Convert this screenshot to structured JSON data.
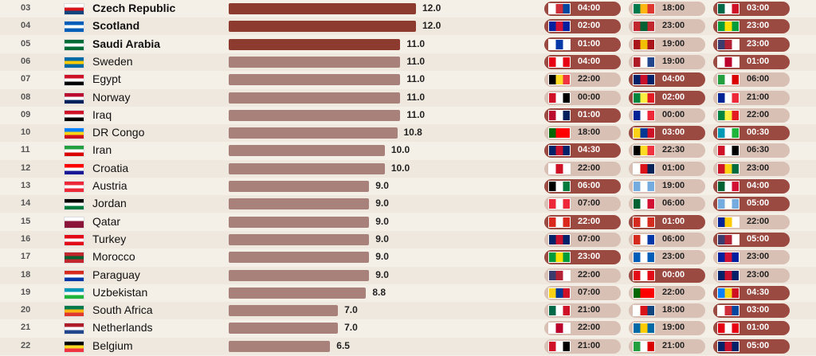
{
  "chart_data": {
    "type": "bar",
    "orientation": "horizontal",
    "rows": [
      {
        "rank": "03",
        "country": "Czech Republic",
        "value": 12.0,
        "label": "12.0",
        "bold": true,
        "flag": [
          "#ffffff",
          "#d7141a",
          "#11457e"
        ],
        "matches": [
          {
            "flag": [
              "#ffffff",
              "#cd2e3a",
              "#0047a0"
            ],
            "time": "04:00",
            "tone": "dark"
          },
          {
            "flag": [
              "#007a4d",
              "#ffb612",
              "#de3831"
            ],
            "time": "18:00",
            "tone": "light"
          },
          {
            "flag": [
              "#006847",
              "#ffffff",
              "#ce1126"
            ],
            "time": "03:00",
            "tone": "dark"
          }
        ]
      },
      {
        "rank": "04",
        "country": "Scotland",
        "value": 12.0,
        "label": "12.0",
        "bold": true,
        "flag": [
          "#005eb8",
          "#ffffff",
          "#005eb8"
        ],
        "matches": [
          {
            "flag": [
              "#00209f",
              "#d21034",
              "#00209f"
            ],
            "time": "02:00",
            "tone": "dark"
          },
          {
            "flag": [
              "#c1272d",
              "#006233",
              "#c1272d"
            ],
            "time": "23:00",
            "tone": "light"
          },
          {
            "flag": [
              "#009c3b",
              "#ffdf00",
              "#009c3b"
            ],
            "time": "23:00",
            "tone": "dark"
          }
        ]
      },
      {
        "rank": "05",
        "country": "Saudi Arabia",
        "value": 11.0,
        "label": "11.0",
        "bold": true,
        "flag": [
          "#006c35",
          "#ffffff",
          "#006c35"
        ],
        "matches": [
          {
            "flag": [
              "#ffffff",
              "#0038a8",
              "#ffffff"
            ],
            "time": "01:00",
            "tone": "dark"
          },
          {
            "flag": [
              "#aa151b",
              "#f1bf00",
              "#aa151b"
            ],
            "time": "19:00",
            "tone": "light"
          },
          {
            "flag": [
              "#3c3b6e",
              "#b22234",
              "#ffffff"
            ],
            "time": "23:00",
            "tone": "dark"
          }
        ]
      },
      {
        "rank": "06",
        "country": "Sweden",
        "value": 11.0,
        "label": "11.0",
        "bold": false,
        "flag": [
          "#006aa7",
          "#fecc00",
          "#006aa7"
        ],
        "matches": [
          {
            "flag": [
              "#e70013",
              "#ffffff",
              "#e70013"
            ],
            "time": "04:00",
            "tone": "dark"
          },
          {
            "flag": [
              "#ae1c28",
              "#ffffff",
              "#21468b"
            ],
            "time": "19:00",
            "tone": "light"
          },
          {
            "flag": [
              "#ffffff",
              "#bc002d",
              "#ffffff"
            ],
            "time": "01:00",
            "tone": "dark"
          }
        ]
      },
      {
        "rank": "07",
        "country": "Egypt",
        "value": 11.0,
        "label": "11.0",
        "bold": false,
        "flag": [
          "#ce1126",
          "#ffffff",
          "#000000"
        ],
        "matches": [
          {
            "flag": [
              "#000000",
              "#fdda24",
              "#ef3340"
            ],
            "time": "22:00",
            "tone": "light"
          },
          {
            "flag": [
              "#012169",
              "#c8102e",
              "#012169"
            ],
            "time": "04:00",
            "tone": "dark"
          },
          {
            "flag": [
              "#239f40",
              "#ffffff",
              "#da0000"
            ],
            "time": "06:00",
            "tone": "light"
          }
        ]
      },
      {
        "rank": "08",
        "country": "Norway",
        "value": 11.0,
        "label": "11.0",
        "bold": false,
        "flag": [
          "#ba0c2f",
          "#ffffff",
          "#00205b"
        ],
        "matches": [
          {
            "flag": [
              "#ce1126",
              "#ffffff",
              "#000000"
            ],
            "time": "00:00",
            "tone": "light"
          },
          {
            "flag": [
              "#00853f",
              "#fdef42",
              "#e31b23"
            ],
            "time": "02:00",
            "tone": "dark"
          },
          {
            "flag": [
              "#002395",
              "#ffffff",
              "#ed2939"
            ],
            "time": "21:00",
            "tone": "light"
          }
        ]
      },
      {
        "rank": "09",
        "country": "Iraq",
        "value": 11.0,
        "label": "11.0",
        "bold": false,
        "flag": [
          "#ce1126",
          "#ffffff",
          "#000000"
        ],
        "matches": [
          {
            "flag": [
              "#ba0c2f",
              "#ffffff",
              "#00205b"
            ],
            "time": "01:00",
            "tone": "dark"
          },
          {
            "flag": [
              "#002395",
              "#ffffff",
              "#ed2939"
            ],
            "time": "00:00",
            "tone": "light"
          },
          {
            "flag": [
              "#00853f",
              "#fdef42",
              "#e31b23"
            ],
            "time": "22:00",
            "tone": "light"
          }
        ]
      },
      {
        "rank": "10",
        "country": "DR Congo",
        "value": 10.8,
        "label": "10.8",
        "bold": false,
        "flag": [
          "#007fff",
          "#f7d618",
          "#ce1021"
        ],
        "matches": [
          {
            "flag": [
              "#006600",
              "#ff0000",
              "#ff0000"
            ],
            "time": "18:00",
            "tone": "light"
          },
          {
            "flag": [
              "#fcd116",
              "#003893",
              "#ce1126"
            ],
            "time": "03:00",
            "tone": "dark"
          },
          {
            "flag": [
              "#0099b5",
              "#ffffff",
              "#1eb53a"
            ],
            "time": "00:30",
            "tone": "dark"
          }
        ]
      },
      {
        "rank": "11",
        "country": "Iran",
        "value": 10.0,
        "label": "10.0",
        "bold": false,
        "flag": [
          "#239f40",
          "#ffffff",
          "#da0000"
        ],
        "matches": [
          {
            "flag": [
              "#012169",
              "#c8102e",
              "#012169"
            ],
            "time": "04:30",
            "tone": "dark"
          },
          {
            "flag": [
              "#000000",
              "#fdda24",
              "#ef3340"
            ],
            "time": "22:30",
            "tone": "light"
          },
          {
            "flag": [
              "#ce1126",
              "#ffffff",
              "#000000"
            ],
            "time": "06:30",
            "tone": "light"
          }
        ]
      },
      {
        "rank": "12",
        "country": "Croatia",
        "value": 10.0,
        "label": "10.0",
        "bold": false,
        "flag": [
          "#ff0000",
          "#ffffff",
          "#171796"
        ],
        "matches": [
          {
            "flag": [
              "#ffffff",
              "#ce1124",
              "#ffffff"
            ],
            "time": "22:00",
            "tone": "light"
          },
          {
            "flag": [
              "#ffffff",
              "#da121a",
              "#072357"
            ],
            "time": "01:00",
            "tone": "light"
          },
          {
            "flag": [
              "#ce1126",
              "#fcd116",
              "#006b3f"
            ],
            "time": "23:00",
            "tone": "light"
          }
        ]
      },
      {
        "rank": "13",
        "country": "Austria",
        "value": 9.0,
        "label": "9.0",
        "bold": false,
        "flag": [
          "#ed2939",
          "#ffffff",
          "#ed2939"
        ],
        "matches": [
          {
            "flag": [
              "#000000",
              "#ffffff",
              "#007a3d"
            ],
            "time": "06:00",
            "tone": "dark"
          },
          {
            "flag": [
              "#74acdf",
              "#ffffff",
              "#74acdf"
            ],
            "time": "19:00",
            "tone": "light"
          },
          {
            "flag": [
              "#006233",
              "#ffffff",
              "#d21034"
            ],
            "time": "04:00",
            "tone": "dark"
          }
        ]
      },
      {
        "rank": "14",
        "country": "Jordan",
        "value": 9.0,
        "label": "9.0",
        "bold": false,
        "flag": [
          "#000000",
          "#ffffff",
          "#007a3d"
        ],
        "matches": [
          {
            "flag": [
              "#ed2939",
              "#ffffff",
              "#ed2939"
            ],
            "time": "07:00",
            "tone": "light"
          },
          {
            "flag": [
              "#006233",
              "#ffffff",
              "#d21034"
            ],
            "time": "06:00",
            "tone": "light"
          },
          {
            "flag": [
              "#74acdf",
              "#ffffff",
              "#74acdf"
            ],
            "time": "05:00",
            "tone": "dark"
          }
        ]
      },
      {
        "rank": "15",
        "country": "Qatar",
        "value": 9.0,
        "label": "9.0",
        "bold": false,
        "flag": [
          "#ffffff",
          "#8a1538",
          "#8a1538"
        ],
        "matches": [
          {
            "flag": [
              "#da291c",
              "#ffffff",
              "#da291c"
            ],
            "time": "22:00",
            "tone": "dark"
          },
          {
            "flag": [
              "#d52b1e",
              "#ffffff",
              "#d52b1e"
            ],
            "time": "01:00",
            "tone": "dark"
          },
          {
            "flag": [
              "#002395",
              "#fecb00",
              "#ffffff"
            ],
            "time": "22:00",
            "tone": "light"
          }
        ]
      },
      {
        "rank": "16",
        "country": "Turkey",
        "value": 9.0,
        "label": "9.0",
        "bold": false,
        "flag": [
          "#e30a17",
          "#ffffff",
          "#e30a17"
        ],
        "matches": [
          {
            "flag": [
              "#012169",
              "#c8102e",
              "#012169"
            ],
            "time": "07:00",
            "tone": "light"
          },
          {
            "flag": [
              "#d52b1e",
              "#ffffff",
              "#0038a8"
            ],
            "time": "06:00",
            "tone": "light"
          },
          {
            "flag": [
              "#3c3b6e",
              "#b22234",
              "#ffffff"
            ],
            "time": "05:00",
            "tone": "dark"
          }
        ]
      },
      {
        "rank": "17",
        "country": "Morocco",
        "value": 9.0,
        "label": "9.0",
        "bold": false,
        "flag": [
          "#c1272d",
          "#006233",
          "#c1272d"
        ],
        "matches": [
          {
            "flag": [
              "#009c3b",
              "#ffdf00",
              "#009c3b"
            ],
            "time": "23:00",
            "tone": "dark"
          },
          {
            "flag": [
              "#005eb8",
              "#ffffff",
              "#005eb8"
            ],
            "time": "23:00",
            "tone": "light"
          },
          {
            "flag": [
              "#00209f",
              "#d21034",
              "#00209f"
            ],
            "time": "23:00",
            "tone": "light"
          }
        ]
      },
      {
        "rank": "18",
        "country": "Paraguay",
        "value": 9.0,
        "label": "9.0",
        "bold": false,
        "flag": [
          "#d52b1e",
          "#ffffff",
          "#0038a8"
        ],
        "matches": [
          {
            "flag": [
              "#3c3b6e",
              "#b22234",
              "#ffffff"
            ],
            "time": "22:00",
            "tone": "light"
          },
          {
            "flag": [
              "#e30a17",
              "#ffffff",
              "#e30a17"
            ],
            "time": "00:00",
            "tone": "dark"
          },
          {
            "flag": [
              "#012169",
              "#c8102e",
              "#012169"
            ],
            "time": "23:00",
            "tone": "light"
          }
        ]
      },
      {
        "rank": "19",
        "country": "Uzbekistan",
        "value": 8.8,
        "label": "8.8",
        "bold": false,
        "flag": [
          "#0099b5",
          "#ffffff",
          "#1eb53a"
        ],
        "matches": [
          {
            "flag": [
              "#fcd116",
              "#003893",
              "#ce1126"
            ],
            "time": "07:00",
            "tone": "light"
          },
          {
            "flag": [
              "#006600",
              "#ff0000",
              "#ff0000"
            ],
            "time": "22:00",
            "tone": "light"
          },
          {
            "flag": [
              "#007fff",
              "#f7d618",
              "#ce1021"
            ],
            "time": "04:30",
            "tone": "dark"
          }
        ]
      },
      {
        "rank": "20",
        "country": "South Africa",
        "value": 7.0,
        "label": "7.0",
        "bold": false,
        "flag": [
          "#007a4d",
          "#ffb612",
          "#de3831"
        ],
        "matches": [
          {
            "flag": [
              "#006847",
              "#ffffff",
              "#ce1126"
            ],
            "time": "21:00",
            "tone": "light"
          },
          {
            "flag": [
              "#ffffff",
              "#d7141a",
              "#11457e"
            ],
            "time": "18:00",
            "tone": "light"
          },
          {
            "flag": [
              "#ffffff",
              "#cd2e3a",
              "#0047a0"
            ],
            "time": "03:00",
            "tone": "dark"
          }
        ]
      },
      {
        "rank": "21",
        "country": "Netherlands",
        "value": 7.0,
        "label": "7.0",
        "bold": false,
        "flag": [
          "#ae1c28",
          "#ffffff",
          "#21468b"
        ],
        "matches": [
          {
            "flag": [
              "#ffffff",
              "#bc002d",
              "#ffffff"
            ],
            "time": "22:00",
            "tone": "light"
          },
          {
            "flag": [
              "#006aa7",
              "#fecc00",
              "#006aa7"
            ],
            "time": "19:00",
            "tone": "light"
          },
          {
            "flag": [
              "#e70013",
              "#ffffff",
              "#e70013"
            ],
            "time": "01:00",
            "tone": "dark"
          }
        ]
      },
      {
        "rank": "22",
        "country": "Belgium",
        "value": 6.5,
        "label": "6.5",
        "bold": false,
        "flag": [
          "#000000",
          "#fdda24",
          "#ef3340"
        ],
        "matches": [
          {
            "flag": [
              "#ce1126",
              "#ffffff",
              "#000000"
            ],
            "time": "21:00",
            "tone": "light"
          },
          {
            "flag": [
              "#239f40",
              "#ffffff",
              "#da0000"
            ],
            "time": "21:00",
            "tone": "light"
          },
          {
            "flag": [
              "#012169",
              "#c8102e",
              "#012169"
            ],
            "time": "05:00",
            "tone": "dark"
          }
        ]
      }
    ],
    "xlim": [
      0,
      12.0
    ],
    "grid": false
  }
}
